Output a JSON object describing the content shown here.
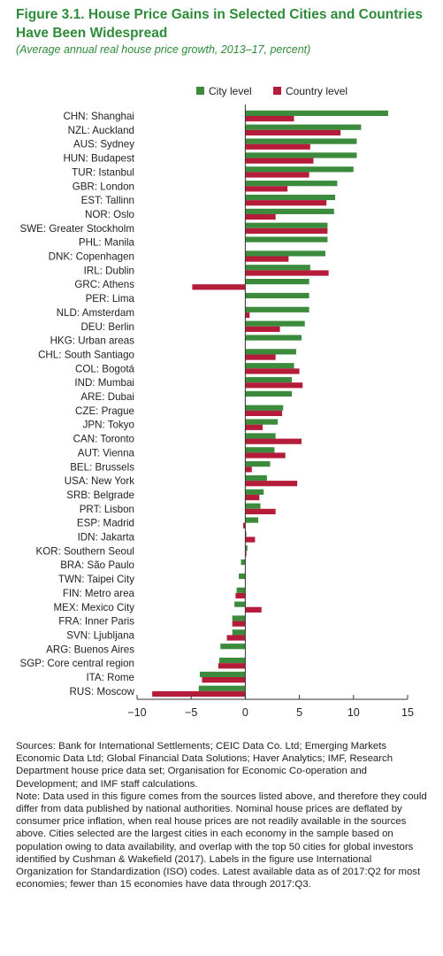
{
  "title": "Figure 3.1. House Price Gains in Selected Cities and Countries Have Been Widespread",
  "subtitle": "(Average annual real house price growth, 2013–17, percent)",
  "colors": {
    "city": "#3c8a3c",
    "country": "#b51c3a",
    "title": "#2e8b3a"
  },
  "chart_data": {
    "type": "bar",
    "orientation": "horizontal",
    "categories": [
      "CHN: Shanghai",
      "NZL: Auckland",
      "AUS: Sydney",
      "HUN: Budapest",
      "TUR: Istanbul",
      "GBR: London",
      "EST: Tallinn",
      "NOR: Oslo",
      "SWE: Greater Stockholm",
      "PHL: Manila",
      "DNK: Copenhagen",
      "IRL: Dublin",
      "GRC: Athens",
      "PER: Lima",
      "NLD: Amsterdam",
      "DEU: Berlin",
      "HKG: Urban areas",
      "CHL: South Santiago",
      "COL: Bogotá",
      "IND: Mumbai",
      "ARE: Dubai",
      "CZE: Prague",
      "JPN: Tokyo",
      "CAN: Toronto",
      "AUT: Vienna",
      "BEL: Brussels",
      "USA: New York",
      "SRB: Belgrade",
      "PRT: Lisbon",
      "ESP: Madrid",
      "IDN: Jakarta",
      "KOR: Southern Seoul",
      "BRA: São Paulo",
      "TWN: Taipei City",
      "FIN: Metro area",
      "MEX: Mexico City",
      "FRA: Inner Paris",
      "SVN: Ljubljana",
      "ARG: Buenos Aires",
      "SGP: Core central region",
      "ITA: Rome",
      "RUS: Moscow"
    ],
    "series": [
      {
        "name": "City level",
        "values": [
          13.2,
          10.7,
          10.3,
          10.3,
          10.0,
          8.5,
          8.3,
          8.2,
          7.6,
          7.6,
          7.4,
          6.0,
          5.9,
          5.9,
          5.9,
          5.5,
          5.2,
          4.7,
          4.5,
          4.3,
          4.3,
          3.5,
          3.0,
          2.8,
          2.7,
          2.3,
          2.0,
          1.7,
          1.4,
          1.2,
          0.1,
          0.2,
          -0.4,
          -0.6,
          -0.8,
          -1.0,
          -1.2,
          -1.2,
          -2.3,
          -2.4,
          -4.2,
          -4.3
        ]
      },
      {
        "name": "Country level",
        "values": [
          4.5,
          8.8,
          6.0,
          6.3,
          5.9,
          3.9,
          7.5,
          2.8,
          7.6,
          0.0,
          4.0,
          7.7,
          -4.9,
          0.0,
          0.4,
          3.2,
          0.0,
          2.8,
          5.0,
          5.3,
          0.0,
          3.4,
          1.6,
          5.2,
          3.7,
          0.6,
          4.8,
          1.3,
          2.8,
          -0.2,
          0.9,
          0.1,
          0.0,
          0.0,
          -0.9,
          1.5,
          -1.2,
          -1.7,
          0.0,
          -2.5,
          -4.0,
          -8.6
        ]
      }
    ],
    "xlim": [
      -10,
      15
    ],
    "xticks": [
      "−10",
      "−5",
      "0",
      "5",
      "10",
      "15"
    ],
    "xtick_values": [
      -10,
      -5,
      0,
      5,
      10,
      15
    ],
    "legend_position": "top-right",
    "grid": false
  },
  "notes": {
    "sources": "Sources: Bank for International Settlements; CEIC Data Co. Ltd; Emerging Markets Economic Data Ltd; Global Financial Data Solutions; Haver Analytics; IMF, Research Department house price data set; Organisation for Economic Co-operation and Development; and IMF staff calculations.",
    "note": "Note: Data used in this figure comes from the sources listed above, and therefore they could differ from data published by national authorities. Nominal house prices are deflated by consumer price inflation, when real house prices are not readily available in the sources above. Cities selected are the largest cities in each economy in the sample based on population owing to data availability, and overlap with the top 50 cities for global investors identified by Cushman & Wakefield (2017). Labels in the figure use International Organization for Standardization (ISO) codes. Latest available data as of 2017:Q2 for most economies; fewer than 15 economies have data through 2017:Q3."
  }
}
